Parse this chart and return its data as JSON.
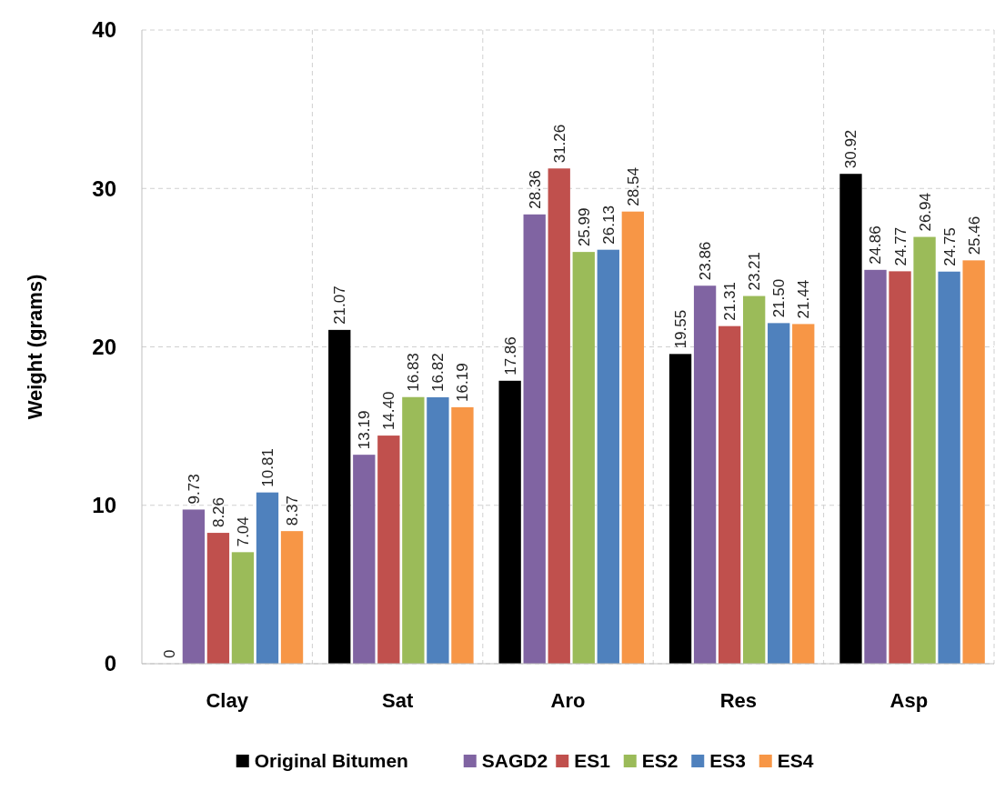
{
  "chart_data": {
    "type": "bar",
    "ylabel": "Weight  (grams)",
    "categories": [
      "Clay",
      "Sat",
      "Aro",
      "Res",
      "Asp"
    ],
    "series": [
      {
        "name": "Original Bitumen",
        "color": "#000000",
        "values": [
          0,
          21.07,
          17.86,
          19.55,
          30.92
        ]
      },
      {
        "name": "SAGD2",
        "color": "#8064a2",
        "values": [
          9.73,
          13.19,
          28.36,
          23.86,
          24.86
        ]
      },
      {
        "name": "ES1",
        "color": "#c0504d",
        "values": [
          8.26,
          14.4,
          31.26,
          21.31,
          24.77
        ]
      },
      {
        "name": "ES2",
        "color": "#9bbb59",
        "values": [
          7.04,
          16.83,
          25.99,
          23.21,
          26.94
        ]
      },
      {
        "name": "ES3",
        "color": "#4f81bd",
        "values": [
          10.81,
          16.82,
          26.13,
          21.5,
          24.75
        ]
      },
      {
        "name": "ES4",
        "color": "#f79646",
        "values": [
          8.37,
          16.19,
          28.54,
          21.44,
          25.46
        ]
      }
    ],
    "value_labels": [
      [
        "0",
        "21.07",
        "17.86",
        "19.55",
        "30.92"
      ],
      [
        "9.73",
        "13.19",
        "28.36",
        "23.86",
        "24.86"
      ],
      [
        "8.26",
        "14.40",
        "31.26",
        "21.31",
        "24.77"
      ],
      [
        "7.04",
        "16.83",
        "25.99",
        "23.21",
        "26.94"
      ],
      [
        "10.81",
        "16.82",
        "26.13",
        "21.50",
        "24.75"
      ],
      [
        "8.37",
        "16.19",
        "28.54",
        "21.44",
        "25.46"
      ]
    ],
    "ylim": [
      0,
      40
    ],
    "yticks": [
      0,
      10,
      20,
      30,
      40
    ],
    "grid": true,
    "legend": "bottom"
  }
}
